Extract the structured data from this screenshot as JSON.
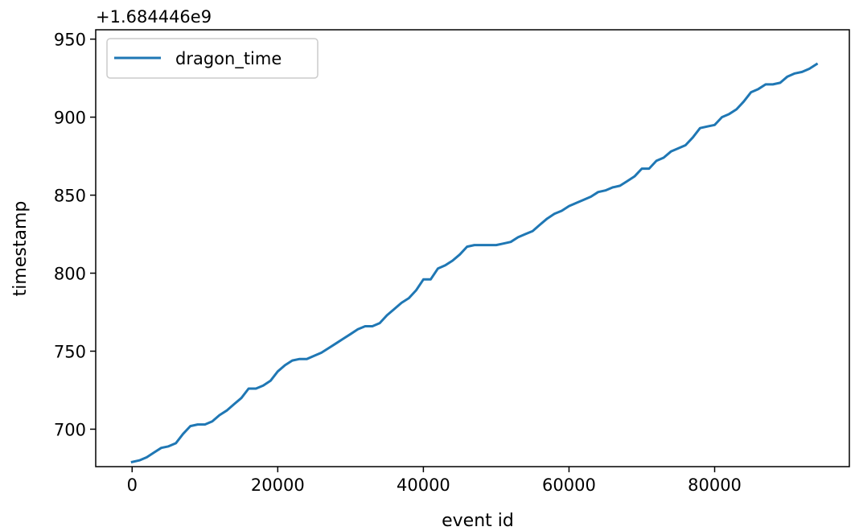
{
  "chart_data": {
    "type": "line",
    "title": "",
    "xlabel": "event id",
    "ylabel": "timestamp",
    "y_offset_text": "+1.684446e9",
    "xlim": [
      -5000,
      98500
    ],
    "ylim": [
      676,
      956
    ],
    "xticks": [
      0,
      20000,
      40000,
      60000,
      80000
    ],
    "yticks": [
      700,
      750,
      800,
      850,
      900,
      950
    ],
    "legend": "upper-left",
    "grid": false,
    "series": [
      {
        "name": "dragon_time",
        "color": "#1f77b4",
        "x": [
          0,
          1000,
          2000,
          3000,
          4000,
          5000,
          6000,
          7000,
          8000,
          9000,
          10000,
          11000,
          12000,
          13000,
          14000,
          15000,
          16000,
          17000,
          18000,
          19000,
          20000,
          21000,
          22000,
          23000,
          24000,
          25000,
          26000,
          27000,
          28000,
          29000,
          30000,
          31000,
          32000,
          33000,
          34000,
          35000,
          36000,
          37000,
          38000,
          39000,
          40000,
          41000,
          42000,
          43000,
          44000,
          45000,
          46000,
          47000,
          48000,
          49000,
          50000,
          51000,
          52000,
          53000,
          54000,
          55000,
          56000,
          57000,
          58000,
          59000,
          60000,
          61000,
          62000,
          63000,
          64000,
          65000,
          66000,
          67000,
          68000,
          69000,
          70000,
          71000,
          72000,
          73000,
          74000,
          75000,
          76000,
          77000,
          78000,
          79000,
          80000,
          81000,
          82000,
          83000,
          84000,
          85000,
          86000,
          87000,
          88000,
          89000,
          90000,
          91000,
          92000,
          93000,
          94000
        ],
        "y": [
          679,
          680,
          682,
          685,
          688,
          689,
          691,
          697,
          702,
          703,
          703,
          705,
          709,
          712,
          716,
          720,
          726,
          726,
          728,
          731,
          737,
          741,
          744,
          745,
          745,
          747,
          749,
          752,
          755,
          758,
          761,
          764,
          766,
          766,
          768,
          773,
          777,
          781,
          784,
          789,
          796,
          796,
          803,
          805,
          808,
          812,
          817,
          818,
          818,
          818,
          818,
          819,
          820,
          823,
          825,
          827,
          831,
          835,
          838,
          840,
          843,
          845,
          847,
          849,
          852,
          853,
          855,
          856,
          859,
          862,
          867,
          867,
          872,
          874,
          878,
          880,
          882,
          887,
          893,
          894,
          895,
          900,
          902,
          905,
          910,
          916,
          918,
          921,
          921,
          922,
          926,
          928,
          929,
          931,
          934
        ]
      }
    ]
  }
}
